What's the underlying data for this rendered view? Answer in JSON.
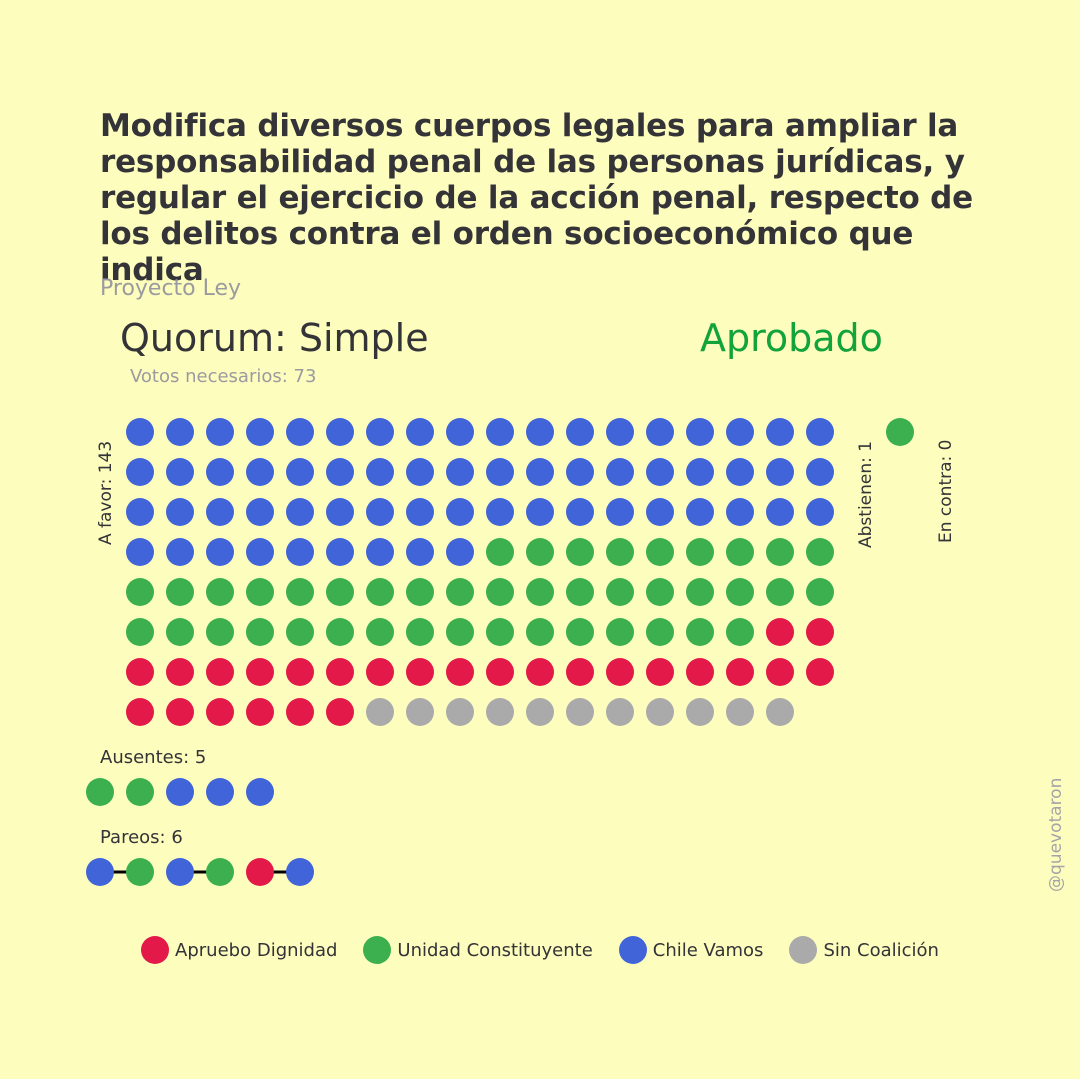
{
  "title": "Modifica diversos cuerpos legales para ampliar la responsabilidad penal de las personas jurídicas, y regular el ejercicio de la acción penal, respecto de los delitos contra el orden socioeconómico que indica",
  "subtitle": "Proyecto Ley",
  "quorum": "Quorum: Simple",
  "result": "Aprobado",
  "votes_needed": "Votos necesarios: 73",
  "labels": {
    "a_favor": "A favor: 143",
    "abstienen": "Abstienen: 1",
    "en_contra": "En contra: 0",
    "ausentes": "Ausentes: 5",
    "pareos": "Pareos: 6"
  },
  "watermark": "@quevotaron",
  "colors": {
    "background": "#fdfdbd",
    "approved": "#12a33a",
    "Apruebo Dignidad": "#e3194a",
    "Unidad Constituyente": "#3cb04f",
    "Chile Vamos": "#4264d9",
    "Sin Coalición": "#aaaaaa"
  },
  "legend": [
    {
      "label": "Apruebo Dignidad",
      "color": "#e3194a"
    },
    {
      "label": "Unidad Constituyente",
      "color": "#3cb04f"
    },
    {
      "label": "Chile Vamos",
      "color": "#4264d9"
    },
    {
      "label": "Sin Coalición",
      "color": "#aaaaaa"
    }
  ],
  "chart_data": {
    "type": "dot-matrix",
    "title": "Modifica diversos cuerpos legales para ampliar la responsabilidad penal de las personas jurídicas, y regular el ejercicio de la acción penal, respecto de los delitos contra el orden socioeconómico que indica",
    "categories": [
      "A favor",
      "Abstienen",
      "En contra",
      "Ausentes",
      "Pareos"
    ],
    "values": [
      143,
      1,
      0,
      5,
      6
    ],
    "votes_needed": 73,
    "result": "Aprobado",
    "series": [
      {
        "name": "Chile Vamos",
        "values": [
          63,
          0,
          0,
          3,
          3
        ]
      },
      {
        "name": "Unidad Constituyente",
        "values": [
          43,
          1,
          0,
          2,
          2
        ]
      },
      {
        "name": "Apruebo Dignidad",
        "values": [
          26,
          0,
          0,
          0,
          1
        ]
      },
      {
        "name": "Sin Coalición",
        "values": [
          11,
          0,
          0,
          0,
          0
        ]
      }
    ],
    "dots_per_row": 18,
    "pareos_pairs": [
      [
        "Chile Vamos",
        "Unidad Constituyente"
      ],
      [
        "Chile Vamos",
        "Unidad Constituyente"
      ],
      [
        "Apruebo Dignidad",
        "Chile Vamos"
      ]
    ]
  }
}
